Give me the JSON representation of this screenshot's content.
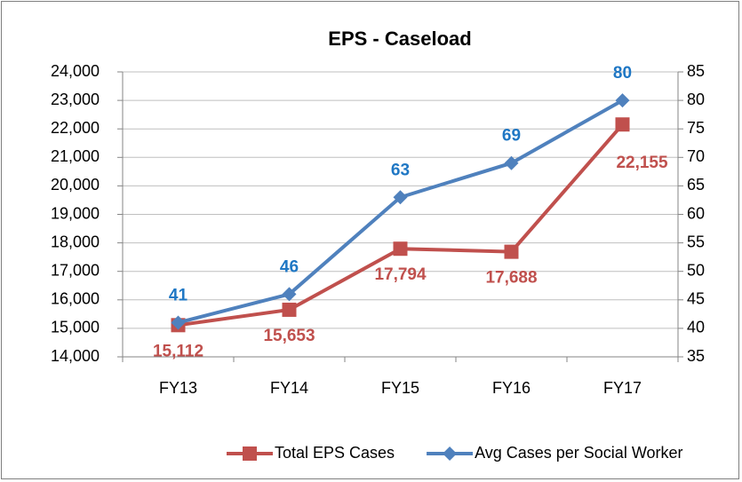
{
  "chart_data": {
    "type": "line",
    "title": "EPS - Caseload",
    "categories": [
      "FY13",
      "FY14",
      "FY15",
      "FY16",
      "FY17"
    ],
    "series": [
      {
        "name": "Total EPS Cases",
        "color": "#c0504d",
        "marker": "square",
        "values": [
          15112,
          15653,
          17794,
          17688,
          22155
        ],
        "value_labels": [
          "15,112",
          "15,653",
          "17,794",
          "17,688",
          "22,155"
        ]
      },
      {
        "name": "Avg Cases per Social Worker",
        "color": "#4f81bd",
        "marker": "diamond",
        "axis": "y2",
        "values": [
          41,
          46,
          63,
          69,
          80
        ]
      }
    ],
    "ylim": [
      14000,
      24000
    ],
    "yticks": [
      {
        "value": 14000,
        "label": "14,000"
      },
      {
        "value": 15000,
        "label": "15,000"
      },
      {
        "value": 16000,
        "label": "16,000"
      },
      {
        "value": 17000,
        "label": "17,000"
      },
      {
        "value": 18000,
        "label": "18,000"
      },
      {
        "value": 19000,
        "label": "19,000"
      },
      {
        "value": 20000,
        "label": "20,000"
      },
      {
        "value": 21000,
        "label": "21,000"
      },
      {
        "value": 22000,
        "label": "22,000"
      },
      {
        "value": 23000,
        "label": "23,000"
      },
      {
        "value": 24000,
        "label": "24,000"
      }
    ],
    "y2lim": [
      35,
      85
    ],
    "y2ticks": [
      35,
      40,
      45,
      50,
      55,
      60,
      65,
      70,
      75,
      80,
      85
    ],
    "grid": true,
    "legend": "bottom"
  }
}
